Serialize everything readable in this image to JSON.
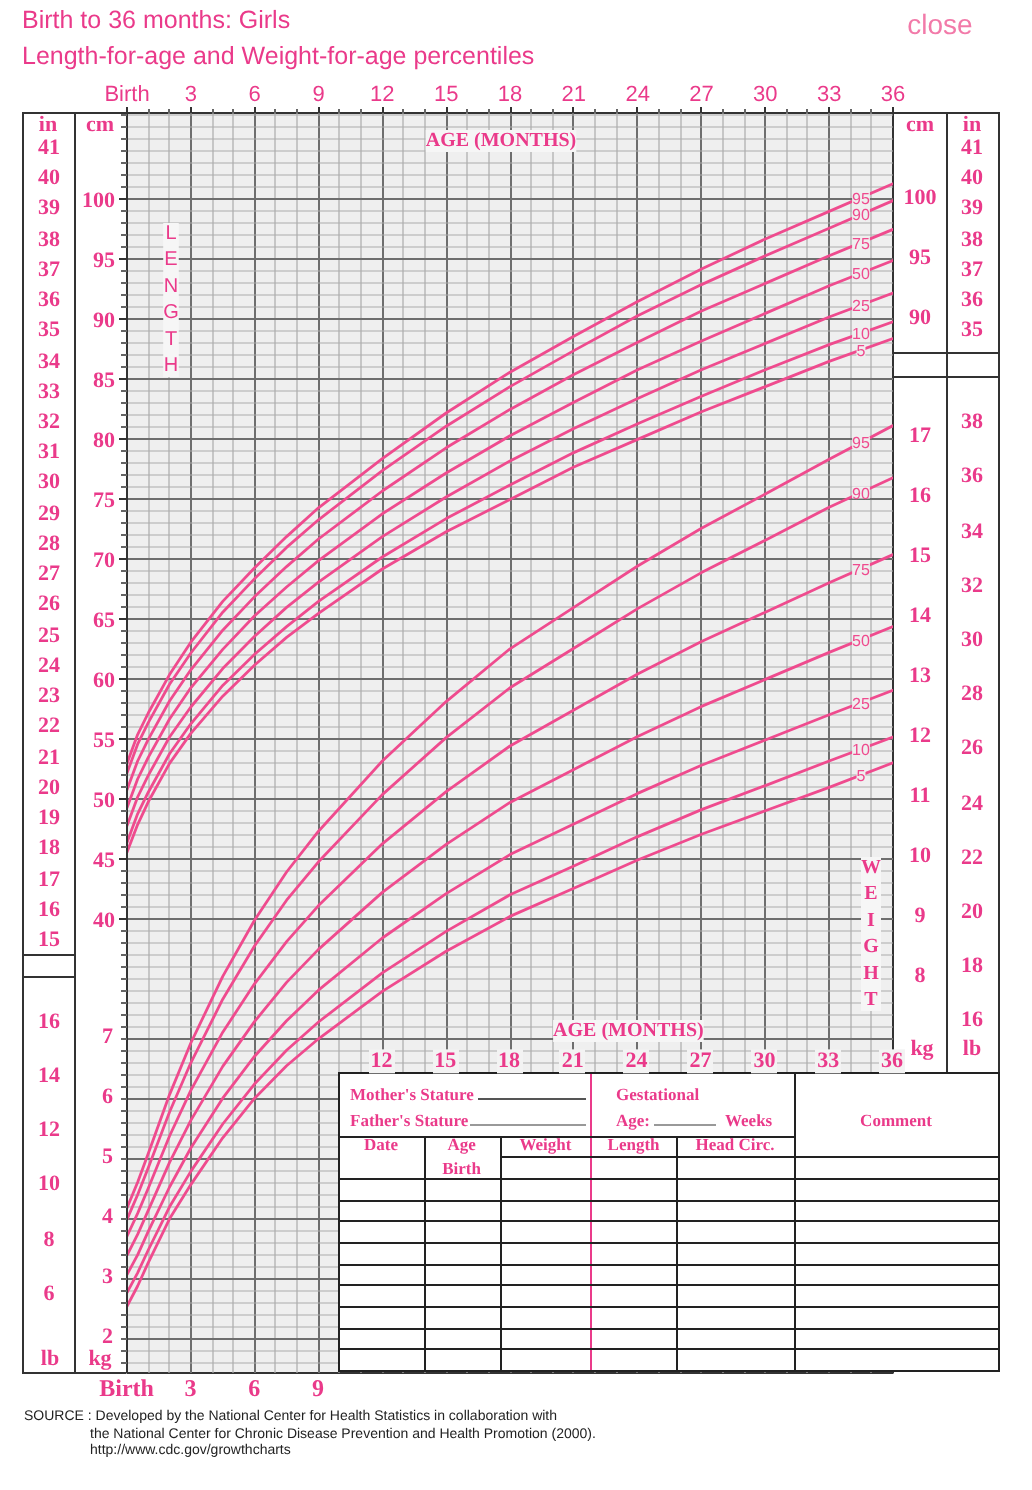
{
  "chart_data": {
    "type": "line",
    "title": "Birth to 36 months: Girls",
    "subtitle": "Length-for-age and Weight-for-age percentiles",
    "x": [
      0,
      0.5,
      1,
      2,
      3,
      4.5,
      6,
      7.5,
      9,
      12,
      15,
      18,
      21,
      24,
      27,
      30,
      33,
      36
    ],
    "xlim": [
      0,
      36
    ],
    "xticks": [
      12,
      15,
      18,
      21,
      24,
      27,
      30,
      33,
      36
    ],
    "xlabel": "AGE (MONTHS)",
    "x2lim": [
      0,
      36
    ],
    "x2ticks": [
      {
        "value": 0,
        "label": "Birth"
      },
      {
        "value": 1,
        "label": null
      },
      {
        "value": 2,
        "label": null
      },
      3,
      {
        "value": 4,
        "label": null
      },
      {
        "value": 5,
        "label": null
      },
      6,
      {
        "value": 7,
        "label": null
      },
      {
        "value": 8,
        "label": null
      },
      9,
      {
        "value": 10,
        "label": null
      },
      {
        "value": 11,
        "label": null
      },
      12,
      {
        "value": 13,
        "label": null
      },
      {
        "value": 14,
        "label": null
      },
      15,
      {
        "value": 16,
        "label": null
      },
      {
        "value": 17,
        "label": null
      },
      18,
      {
        "value": 19,
        "label": null
      },
      {
        "value": 20,
        "label": null
      },
      21,
      {
        "value": 22,
        "label": null
      },
      {
        "value": 23,
        "label": null
      },
      24,
      {
        "value": 25,
        "label": null
      },
      {
        "value": 26,
        "label": null
      },
      27,
      {
        "value": 28,
        "label": null
      },
      {
        "value": 29,
        "label": null
      },
      30,
      {
        "value": 31,
        "label": null
      },
      {
        "value": 32,
        "label": null
      },
      33,
      {
        "value": 34,
        "label": null
      },
      {
        "value": 35,
        "label": null
      },
      36
    ],
    "x2label": "AGE (MONTHS)",
    "ylim": [
      2.2,
      107.2
    ],
    "ylabel": "cm",
    "yticks": [
      {
        "value": 3,
        "label": null
      },
      {
        "value": 4,
        "label": null
      },
      {
        "value": 5,
        "label": null
      },
      {
        "value": 6,
        "label": null
      },
      {
        "value": 7,
        "label": null
      },
      {
        "value": 8,
        "label": null
      },
      {
        "value": 9,
        "label": null
      },
      {
        "value": 10,
        "label": null
      },
      {
        "value": 11,
        "label": null
      },
      {
        "value": 12,
        "label": null
      },
      {
        "value": 13,
        "label": null
      },
      {
        "value": 14,
        "label": null
      },
      {
        "value": 15,
        "label": null
      },
      {
        "value": 16,
        "label": null
      },
      {
        "value": 17,
        "label": null
      },
      {
        "value": 18,
        "label": null
      },
      {
        "value": 19,
        "label": null
      },
      {
        "value": 20,
        "label": null
      },
      {
        "value": 21,
        "label": null
      },
      {
        "value": 22,
        "label": null
      },
      {
        "value": 23,
        "label": null
      },
      {
        "value": 24,
        "label": null
      },
      {
        "value": 25,
        "label": null
      },
      {
        "value": 26,
        "label": null
      },
      {
        "value": 27,
        "label": null
      },
      {
        "value": 28,
        "label": null
      },
      {
        "value": 29,
        "label": null
      },
      {
        "value": 30,
        "label": null
      },
      {
        "value": 31,
        "label": null
      },
      {
        "value": 32,
        "label": null
      },
      {
        "value": 33,
        "label": null
      },
      {
        "value": 34,
        "label": null
      },
      {
        "value": 35,
        "label": null
      },
      {
        "value": 36,
        "label": null
      },
      {
        "value": 37,
        "label": null
      },
      {
        "value": 38,
        "label": null
      },
      {
        "value": 39,
        "label": null
      },
      40,
      {
        "value": 41,
        "label": null
      },
      {
        "value": 42,
        "label": null
      },
      {
        "value": 43,
        "label": null
      },
      {
        "value": 44,
        "label": null
      },
      45,
      {
        "value": 46,
        "label": null
      },
      {
        "value": 47,
        "label": null
      },
      {
        "value": 48,
        "label": null
      },
      {
        "value": 49,
        "label": null
      },
      50,
      {
        "value": 51,
        "label": null
      },
      {
        "value": 52,
        "label": null
      },
      {
        "value": 53,
        "label": null
      },
      {
        "value": 54,
        "label": null
      },
      55,
      {
        "value": 56,
        "label": null
      },
      {
        "value": 57,
        "label": null
      },
      {
        "value": 58,
        "label": null
      },
      {
        "value": 59,
        "label": null
      },
      60,
      {
        "value": 61,
        "label": null
      },
      {
        "value": 62,
        "label": null
      },
      {
        "value": 63,
        "label": null
      },
      {
        "value": 64,
        "label": null
      },
      65,
      {
        "value": 66,
        "label": null
      },
      {
        "value": 67,
        "label": null
      },
      {
        "value": 68,
        "label": null
      },
      {
        "value": 69,
        "label": null
      },
      70,
      {
        "value": 71,
        "label": null
      },
      {
        "value": 72,
        "label": null
      },
      {
        "value": 73,
        "label": null
      },
      {
        "value": 74,
        "label": null
      },
      75,
      {
        "value": 76,
        "label": null
      },
      {
        "value": 77,
        "label": null
      },
      {
        "value": 78,
        "label": null
      },
      {
        "value": 79,
        "label": null
      },
      80,
      {
        "value": 81,
        "label": null
      },
      {
        "value": 82,
        "label": null
      },
      {
        "value": 83,
        "label": null
      },
      {
        "value": 84,
        "label": null
      },
      85,
      {
        "value": 86,
        "label": null
      },
      {
        "value": 87,
        "label": null
      },
      {
        "value": 88,
        "label": null
      },
      {
        "value": 89,
        "label": null
      },
      90,
      {
        "value": 91,
        "label": null
      },
      {
        "value": 92,
        "label": null
      },
      {
        "value": 93,
        "label": null
      },
      {
        "value": 94,
        "label": null
      },
      95,
      {
        "value": 96,
        "label": null
      },
      {
        "value": 97,
        "label": null
      },
      {
        "value": 98,
        "label": null
      },
      {
        "value": 99,
        "label": null
      },
      100,
      {
        "value": 101,
        "label": null
      },
      {
        "value": 102,
        "label": null
      },
      {
        "value": 103,
        "label": null
      },
      {
        "value": 104,
        "label": null
      },
      {
        "value": 105,
        "label": null
      },
      {
        "value": 106,
        "label": null
      },
      {
        "value": 107,
        "label": null
      }
    ],
    "y2lim": [
      1.44,
      22.44
    ],
    "y2ticks": [
      2,
      3,
      4,
      5,
      6,
      7
    ],
    "grid": true,
    "series": [
      {
        "name": "95",
        "color": "#ef4b8e",
        "axis": "y",
        "values": [
          53.0,
          55.4,
          57.2,
          60.4,
          63.1,
          66.5,
          69.3,
          71.9,
          74.3,
          78.4,
          82.2,
          85.6,
          88.6,
          91.5,
          94.2,
          96.7,
          99.0,
          101.3
        ]
      },
      {
        "name": "90",
        "color": "#ef4b8e",
        "axis": "y",
        "values": [
          52.2,
          54.6,
          56.4,
          59.6,
          62.2,
          65.6,
          68.4,
          71.0,
          73.3,
          77.4,
          81.1,
          84.4,
          87.4,
          90.3,
          92.9,
          95.3,
          97.6,
          99.9
        ]
      },
      {
        "name": "75",
        "color": "#ef4b8e",
        "axis": "y",
        "values": [
          50.8,
          53.2,
          55.0,
          58.2,
          60.8,
          64.1,
          66.9,
          69.4,
          71.7,
          75.7,
          79.3,
          82.5,
          85.4,
          88.1,
          90.7,
          93.0,
          95.3,
          97.5
        ]
      },
      {
        "name": "50",
        "color": "#ef4b8e",
        "axis": "y",
        "values": [
          49.3,
          51.7,
          53.5,
          56.7,
          59.3,
          62.5,
          65.3,
          67.7,
          69.9,
          73.8,
          77.2,
          80.3,
          83.1,
          85.8,
          88.2,
          90.5,
          92.8,
          94.9
        ]
      },
      {
        "name": "25",
        "color": "#ef4b8e",
        "axis": "y",
        "values": [
          47.8,
          50.2,
          52.0,
          55.2,
          57.7,
          60.9,
          63.6,
          66.0,
          68.1,
          71.9,
          75.2,
          78.2,
          80.9,
          83.4,
          85.8,
          88.0,
          90.2,
          92.2
        ]
      },
      {
        "name": "10",
        "color": "#ef4b8e",
        "axis": "y",
        "values": [
          46.4,
          48.8,
          50.6,
          53.8,
          56.3,
          59.5,
          62.1,
          64.4,
          66.5,
          70.2,
          73.4,
          76.2,
          78.9,
          81.3,
          83.6,
          85.8,
          87.9,
          89.8
        ]
      },
      {
        "name": "5",
        "color": "#ef4b8e",
        "axis": "y",
        "values": [
          45.6,
          47.9,
          49.8,
          53.0,
          55.5,
          58.6,
          61.2,
          63.5,
          65.5,
          69.2,
          72.3,
          75.0,
          77.7,
          80.0,
          82.3,
          84.4,
          86.5,
          88.4
        ]
      },
      {
        "name": "95",
        "color": "#ef4b8e",
        "axis": "y2",
        "values": [
          4.19,
          4.62,
          5.1,
          6.08,
          6.94,
          8.05,
          8.99,
          9.79,
          10.47,
          11.64,
          12.63,
          13.51,
          14.2,
          14.89,
          15.52,
          16.09,
          16.67,
          17.23
        ]
      },
      {
        "name": "90",
        "color": "#ef4b8e",
        "axis": "y2",
        "values": [
          4.0,
          4.41,
          4.86,
          5.79,
          6.61,
          7.67,
          8.56,
          9.32,
          9.96,
          11.08,
          12.03,
          12.86,
          13.52,
          14.18,
          14.78,
          15.32,
          15.87,
          16.36
        ]
      },
      {
        "name": "75",
        "color": "#ef4b8e",
        "axis": "y2",
        "values": [
          3.72,
          4.1,
          4.52,
          5.39,
          6.15,
          7.12,
          7.93,
          8.63,
          9.23,
          10.26,
          11.13,
          11.89,
          12.49,
          13.09,
          13.63,
          14.12,
          14.61,
          15.08
        ]
      },
      {
        "name": "50",
        "color": "#ef4b8e",
        "axis": "y2",
        "values": [
          3.4,
          3.75,
          4.15,
          4.95,
          5.65,
          6.55,
          7.3,
          7.95,
          8.5,
          9.45,
          10.25,
          10.95,
          11.5,
          12.05,
          12.55,
          13.0,
          13.45,
          13.88
        ]
      },
      {
        "name": "25",
        "color": "#ef4b8e",
        "axis": "y2",
        "values": [
          3.08,
          3.41,
          3.8,
          4.54,
          5.19,
          6.02,
          6.72,
          7.31,
          7.82,
          8.69,
          9.43,
          10.08,
          10.59,
          11.1,
          11.57,
          11.99,
          12.41,
          12.82
        ]
      },
      {
        "name": "10",
        "color": "#ef4b8e",
        "axis": "y2",
        "values": [
          2.78,
          3.11,
          3.49,
          4.21,
          4.8,
          5.59,
          6.26,
          6.82,
          7.29,
          8.11,
          8.8,
          9.41,
          9.89,
          10.38,
          10.83,
          11.23,
          11.64,
          12.04
        ]
      },
      {
        "name": "5",
        "color": "#ef4b8e",
        "axis": "y2",
        "values": [
          2.55,
          2.89,
          3.28,
          4.01,
          4.58,
          5.36,
          6.02,
          6.56,
          7.01,
          7.8,
          8.47,
          9.05,
          9.52,
          9.99,
          10.42,
          10.81,
          11.2,
          11.61
        ]
      }
    ],
    "annotations": [
      "LENGTH",
      "WEIGHT",
      "in",
      "lb",
      "cm",
      "in",
      "kg",
      "lb",
      "kg",
      "41\n40\n39\n38\n37\n36\n35\n34\n33\n32\n31\n30\n29\n28\n27\n26\n25\n24\n23\n22\n21\n20\n19\n18\n17\n16\n15",
      "16\n14\n12\n10\n8\n6",
      "100\n95\n90",
      "17\n16\n15\n14\n13\n12\n11\n10\n9\n8",
      "41\n40\n39\n38\n37\n36\n35",
      "38\n36\n34\n32\n30\n28\n26\n24\n22\n20\n18\n16",
      "Birth",
      "3",
      "6",
      "9",
      "Mother's Stature",
      "Father's Stature",
      "Gestational",
      "Age:",
      "Weeks",
      "Comment",
      "Date",
      "Age",
      "Weight",
      "Length",
      "Head Circ.",
      "Birth",
      "SOURCE : Developed by the National Center for Health Statistics in collaboration with",
      "the National Center for Chronic Disease Prevention and Health Promotion (2000).",
      "http://www.cdc.gov/growthcharts",
      "close"
    ]
  }
}
